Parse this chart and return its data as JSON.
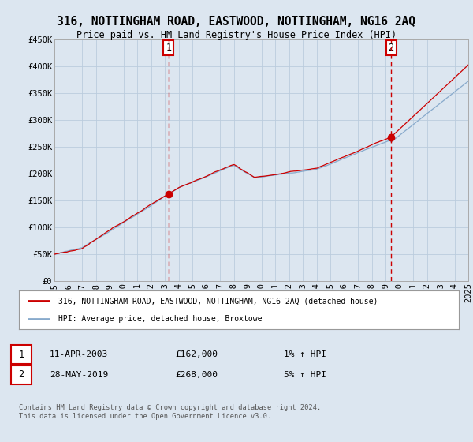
{
  "title": "316, NOTTINGHAM ROAD, EASTWOOD, NOTTINGHAM, NG16 2AQ",
  "subtitle": "Price paid vs. HM Land Registry's House Price Index (HPI)",
  "legend_line1": "316, NOTTINGHAM ROAD, EASTWOOD, NOTTINGHAM, NG16 2AQ (detached house)",
  "legend_line2": "HPI: Average price, detached house, Broxtowe",
  "annotation1_date": "11-APR-2003",
  "annotation1_price": "£162,000",
  "annotation1_hpi": "1% ↑ HPI",
  "annotation2_date": "28-MAY-2019",
  "annotation2_price": "£268,000",
  "annotation2_hpi": "5% ↑ HPI",
  "footer": "Contains HM Land Registry data © Crown copyright and database right 2024.\nThis data is licensed under the Open Government Licence v3.0.",
  "sale1_year": 2003.28,
  "sale1_price": 162000,
  "sale2_year": 2019.41,
  "sale2_price": 268000,
  "price_line_color": "#cc0000",
  "hpi_line_color": "#88aacc",
  "background_color": "#dce6f0",
  "plot_bg_color": "#dce6f0",
  "grid_color": "#bbccdd",
  "annotation_line_color": "#cc0000",
  "ylim_min": 0,
  "ylim_max": 450000,
  "xmin": 1995,
  "xmax": 2025
}
